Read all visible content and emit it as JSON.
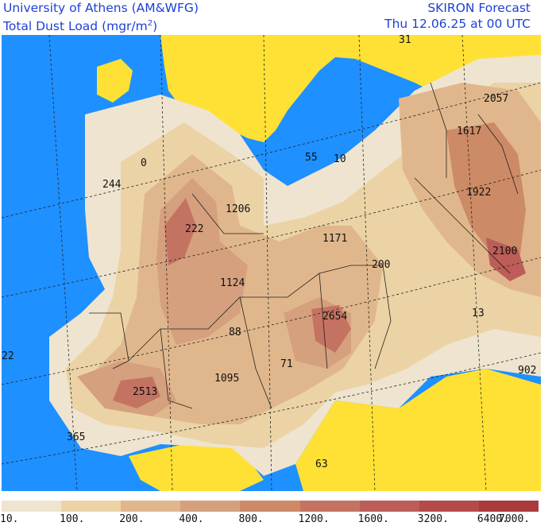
{
  "header": {
    "left_line1": "University of Athens (AM&WFG)",
    "left_line2_main": "Total Dust Load (mgr/m",
    "left_line2_sup": "2",
    "left_line2_end": ")",
    "right_line1": "SKIRON Forecast",
    "right_line2": "Thu 12.06.25 at 00 UTC"
  },
  "colors": {
    "ocean": "#1e90ff",
    "land_clear": "#ffe135",
    "dust_scale": [
      "#efe4cf",
      "#ebd3a6",
      "#e0b78c",
      "#d5a07e",
      "#cd8a66",
      "#c47362",
      "#bc5d58",
      "#b54a4a",
      "#ab3a3d"
    ]
  },
  "legend": {
    "labels": [
      "10.",
      "100.",
      "200.",
      "400.",
      "800.",
      "1200.",
      "1600.",
      "3200.",
      "6400.",
      "7000."
    ]
  },
  "map_values": [
    {
      "label": "31"
    },
    {
      "label": "2057"
    },
    {
      "label": "1617"
    },
    {
      "label": "0"
    },
    {
      "label": "55"
    },
    {
      "label": "10"
    },
    {
      "label": "244"
    },
    {
      "label": "1206"
    },
    {
      "label": "1922"
    },
    {
      "label": "222"
    },
    {
      "label": "1171"
    },
    {
      "label": "2100"
    },
    {
      "label": "200"
    },
    {
      "label": "1124"
    },
    {
      "label": "2654"
    },
    {
      "label": "13"
    },
    {
      "label": "88"
    },
    {
      "label": "22"
    },
    {
      "label": "71"
    },
    {
      "label": "1095"
    },
    {
      "label": "902"
    },
    {
      "label": "2513"
    },
    {
      "label": "365"
    },
    {
      "label": "63"
    }
  ]
}
